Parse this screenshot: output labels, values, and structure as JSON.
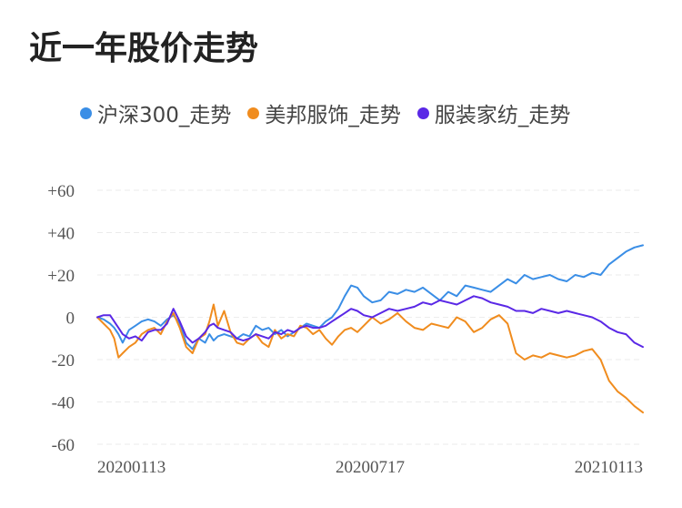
{
  "title": "近一年股价走势",
  "chart_data": {
    "type": "line",
    "title": "近一年股价走势",
    "xlabel": "",
    "ylabel": "",
    "x_tick_labels": [
      "20200113",
      "20200717",
      "20210113"
    ],
    "x_range": [
      "20200113",
      "20210113"
    ],
    "y_ticks": [
      60,
      40,
      20,
      0,
      -20,
      -40,
      -60
    ],
    "y_tick_labels": [
      "+60",
      "+40",
      "+20",
      "0",
      "-20",
      "-40",
      "-60"
    ],
    "ylim": [
      -60,
      60
    ],
    "grid": "horizontal dashed",
    "legend_position": "top",
    "series": [
      {
        "name": "沪深300_走势",
        "color": "#3a8ee6",
        "x": [
          0,
          3,
          6,
          8,
          10,
          12,
          15,
          18,
          21,
          24,
          27,
          30,
          33,
          36,
          39,
          42,
          45,
          48,
          51,
          53,
          55,
          57,
          60,
          63,
          66,
          69,
          72,
          75,
          78,
          81,
          84,
          87,
          90,
          93,
          96,
          99,
          102,
          105,
          108,
          111,
          114,
          117,
          120,
          123,
          126,
          130,
          134,
          138,
          142,
          146,
          150,
          154,
          158,
          162,
          166,
          170,
          174,
          178,
          182,
          186,
          190,
          194,
          198,
          202,
          206,
          210,
          214,
          218,
          222,
          226,
          230,
          234,
          238,
          242,
          246,
          250,
          254,
          258
        ],
        "values": [
          0,
          -1,
          -3,
          -5,
          -8,
          -12,
          -6,
          -4,
          -2,
          -1,
          -2,
          -4,
          -1,
          1,
          -3,
          -12,
          -15,
          -10,
          -12,
          -8,
          -11,
          -9,
          -8,
          -9,
          -10,
          -8,
          -9,
          -4,
          -6,
          -5,
          -8,
          -6,
          -9,
          -7,
          -5,
          -3,
          -4,
          -5,
          -2,
          0,
          4,
          10,
          15,
          14,
          10,
          7,
          8,
          12,
          11,
          13,
          12,
          14,
          11,
          8,
          12,
          10,
          15,
          14,
          13,
          12,
          15,
          18,
          16,
          20,
          18,
          19,
          20,
          18,
          17,
          20,
          19,
          21,
          20,
          25,
          28,
          31,
          33,
          34
        ]
      },
      {
        "name": "美邦服饰_走势",
        "color": "#f08c1e",
        "x": [
          0,
          3,
          6,
          8,
          10,
          12,
          15,
          18,
          21,
          24,
          27,
          30,
          33,
          36,
          39,
          42,
          45,
          48,
          51,
          53,
          55,
          57,
          60,
          63,
          66,
          69,
          72,
          75,
          78,
          81,
          84,
          87,
          90,
          93,
          96,
          99,
          102,
          105,
          108,
          111,
          114,
          117,
          120,
          123,
          126,
          130,
          134,
          138,
          142,
          146,
          150,
          154,
          158,
          162,
          166,
          170,
          174,
          178,
          182,
          186,
          190,
          194,
          198,
          202,
          206,
          210,
          214,
          218,
          222,
          226,
          230,
          234,
          238,
          242,
          246,
          250,
          254,
          258
        ],
        "values": [
          0,
          -3,
          -6,
          -10,
          -19,
          -17,
          -14,
          -12,
          -8,
          -6,
          -5,
          -8,
          -2,
          2,
          -5,
          -14,
          -17,
          -10,
          -8,
          -2,
          6,
          -4,
          3,
          -7,
          -12,
          -13,
          -10,
          -8,
          -12,
          -14,
          -6,
          -10,
          -8,
          -9,
          -4,
          -5,
          -8,
          -6,
          -10,
          -13,
          -9,
          -6,
          -5,
          -7,
          -4,
          0,
          -3,
          -1,
          2,
          -2,
          -5,
          -6,
          -3,
          -4,
          -5,
          0,
          -2,
          -7,
          -5,
          -1,
          1,
          -3,
          -17,
          -20,
          -18,
          -19,
          -17,
          -18,
          -19,
          -18,
          -16,
          -15,
          -20,
          -30,
          -35,
          -38,
          -42,
          -45
        ]
      },
      {
        "name": "服装家纺_走势",
        "color": "#5a28e6",
        "x": [
          0,
          3,
          6,
          8,
          10,
          12,
          15,
          18,
          21,
          24,
          27,
          30,
          33,
          36,
          39,
          42,
          45,
          48,
          51,
          53,
          55,
          57,
          60,
          63,
          66,
          69,
          72,
          75,
          78,
          81,
          84,
          87,
          90,
          93,
          96,
          99,
          102,
          105,
          108,
          111,
          114,
          117,
          120,
          123,
          126,
          130,
          134,
          138,
          142,
          146,
          150,
          154,
          158,
          162,
          166,
          170,
          174,
          178,
          182,
          186,
          190,
          194,
          198,
          202,
          206,
          210,
          214,
          218,
          222,
          226,
          230,
          234,
          238,
          242,
          246,
          250,
          254,
          258
        ],
        "values": [
          0,
          1,
          1,
          -2,
          -5,
          -8,
          -10,
          -9,
          -11,
          -7,
          -6,
          -6,
          -3,
          4,
          -2,
          -9,
          -12,
          -10,
          -7,
          -4,
          -3,
          -5,
          -6,
          -7,
          -10,
          -11,
          -10,
          -8,
          -9,
          -10,
          -7,
          -8,
          -6,
          -7,
          -5,
          -4,
          -5,
          -5,
          -4,
          -2,
          0,
          2,
          4,
          3,
          1,
          0,
          2,
          4,
          3,
          4,
          5,
          7,
          6,
          8,
          7,
          6,
          8,
          10,
          9,
          7,
          6,
          5,
          3,
          3,
          2,
          4,
          3,
          2,
          3,
          2,
          1,
          0,
          -2,
          -5,
          -7,
          -8,
          -12,
          -14
        ]
      }
    ]
  }
}
